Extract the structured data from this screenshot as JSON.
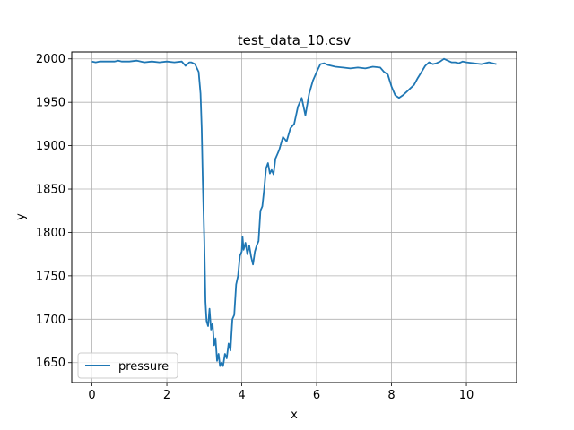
{
  "chart_data": {
    "type": "line",
    "title": "test_data_10.csv",
    "xlabel": "x",
    "ylabel": "y",
    "xlim": [
      -0.54,
      11.34
    ],
    "ylim": [
      1627,
      2008
    ],
    "xticks": [
      0,
      2,
      4,
      6,
      8,
      10
    ],
    "yticks": [
      1650,
      1700,
      1750,
      1800,
      1850,
      1900,
      1950,
      2000
    ],
    "grid": true,
    "legend_position": "lower-left",
    "series": [
      {
        "name": "pressure",
        "color": "#1f77b4",
        "x": [
          0.0,
          0.1,
          0.2,
          0.4,
          0.6,
          0.7,
          0.8,
          1.0,
          1.2,
          1.4,
          1.6,
          1.8,
          2.0,
          2.2,
          2.4,
          2.5,
          2.6,
          2.65,
          2.75,
          2.85,
          2.9,
          2.93,
          2.96,
          3.0,
          3.03,
          3.06,
          3.1,
          3.14,
          3.18,
          3.22,
          3.26,
          3.3,
          3.34,
          3.38,
          3.42,
          3.46,
          3.5,
          3.55,
          3.6,
          3.65,
          3.7,
          3.75,
          3.8,
          3.85,
          3.9,
          3.95,
          4.0,
          4.02,
          4.05,
          4.1,
          4.15,
          4.2,
          4.25,
          4.3,
          4.35,
          4.4,
          4.45,
          4.5,
          4.55,
          4.6,
          4.65,
          4.7,
          4.75,
          4.8,
          4.85,
          4.9,
          4.95,
          5.0,
          5.1,
          5.2,
          5.3,
          5.4,
          5.5,
          5.6,
          5.7,
          5.8,
          5.9,
          6.0,
          6.1,
          6.2,
          6.3,
          6.5,
          6.7,
          6.9,
          7.1,
          7.3,
          7.5,
          7.7,
          7.8,
          7.9,
          8.0,
          8.1,
          8.2,
          8.3,
          8.4,
          8.5,
          8.6,
          8.7,
          8.8,
          8.9,
          9.0,
          9.1,
          9.2,
          9.3,
          9.4,
          9.5,
          9.6,
          9.7,
          9.8,
          9.9,
          10.0,
          10.2,
          10.4,
          10.6,
          10.8
        ],
        "y": [
          1997,
          1996,
          1997,
          1997,
          1997,
          1998,
          1997,
          1997,
          1998,
          1996,
          1997,
          1996,
          1997,
          1996,
          1997,
          1992,
          1996,
          1996,
          1994,
          1985,
          1960,
          1920,
          1860,
          1790,
          1720,
          1698,
          1692,
          1712,
          1688,
          1695,
          1670,
          1678,
          1652,
          1660,
          1646,
          1650,
          1646,
          1660,
          1655,
          1672,
          1664,
          1700,
          1705,
          1740,
          1750,
          1773,
          1778,
          1795,
          1780,
          1788,
          1775,
          1785,
          1772,
          1763,
          1778,
          1785,
          1790,
          1825,
          1830,
          1850,
          1874,
          1880,
          1868,
          1872,
          1867,
          1885,
          1890,
          1895,
          1910,
          1905,
          1920,
          1925,
          1945,
          1955,
          1935,
          1960,
          1975,
          1985,
          1994,
          1995,
          1993,
          1991,
          1990,
          1989,
          1990,
          1989,
          1991,
          1990,
          1985,
          1982,
          1968,
          1958,
          1955,
          1958,
          1962,
          1966,
          1970,
          1978,
          1985,
          1992,
          1996,
          1994,
          1995,
          1997,
          2000,
          1998,
          1996,
          1996,
          1995,
          1997,
          1996,
          1995,
          1994,
          1996,
          1994
        ]
      }
    ]
  }
}
